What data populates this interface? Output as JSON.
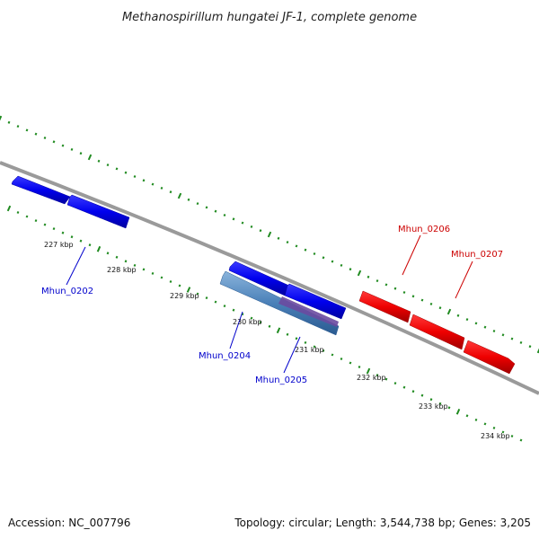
{
  "title": "Methanospirillum hungatei JF-1, complete genome",
  "footer": {
    "accession": "Accession: NC_007796",
    "summary": "Topology: circular; Length: 3,544,738 bp; Genes: 3,205"
  },
  "colors": {
    "backbone": "#808080",
    "tick": "#1f8a1f",
    "forward_gene": "#0000ee",
    "reverse_gene": "#ee0000",
    "cds_bar": "#4a80b8",
    "highlight": "#6a4aa0"
  },
  "scale_ticks": [
    "227 kbp",
    "228 kbp",
    "229 kbp",
    "230 kbp",
    "231 kbp",
    "232 kbp",
    "233 kbp",
    "234 kbp"
  ],
  "genes": [
    {
      "label": "Mhun_0202",
      "strand": "forward"
    },
    {
      "label": "Mhun_0204",
      "strand": "forward"
    },
    {
      "label": "Mhun_0205",
      "strand": "forward"
    },
    {
      "label": "Mhun_0206",
      "strand": "reverse"
    },
    {
      "label": "Mhun_0207",
      "strand": "reverse"
    }
  ]
}
